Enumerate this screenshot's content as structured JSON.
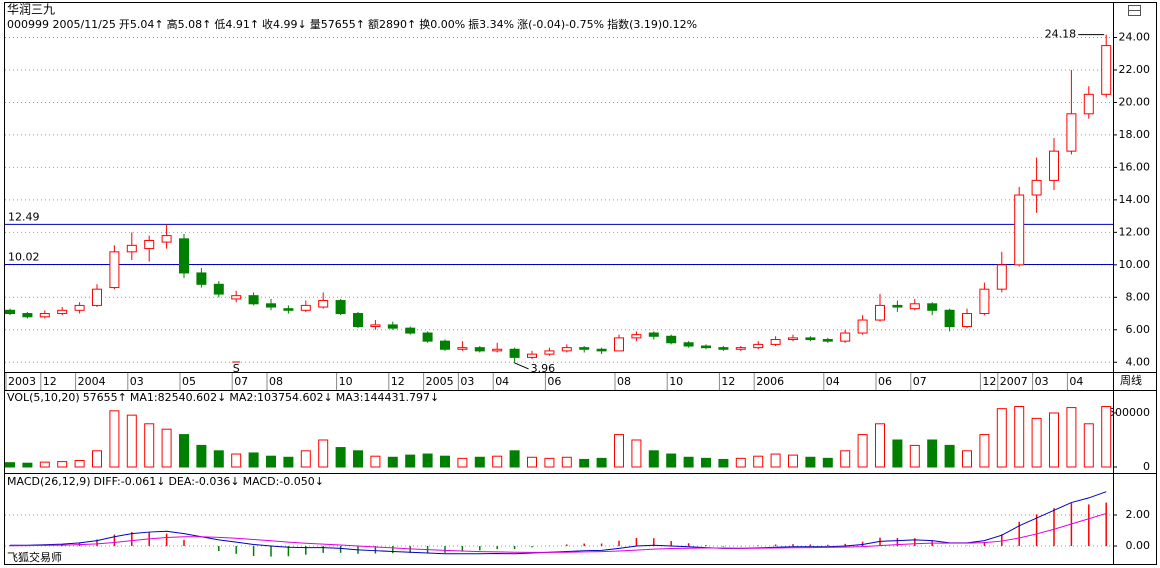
{
  "header": {
    "title": "华润三九",
    "items": [
      {
        "text": "000999 2005/11/25",
        "color": "#000000"
      },
      {
        "text": "开5.04↑",
        "color": "#e00000"
      },
      {
        "text": "高5.08↑",
        "color": "#e00000"
      },
      {
        "text": "低4.91↑",
        "color": "#008000"
      },
      {
        "text": "收4.99↓",
        "color": "#008000"
      },
      {
        "text": "量57655↑",
        "color": "#000000"
      },
      {
        "text": "额2890↑",
        "color": "#000000"
      },
      {
        "text": "换0.00%",
        "color": "#000000"
      },
      {
        "text": "振3.34%",
        "color": "#000000"
      },
      {
        "text": "涨(-0.04)-0.75%",
        "color": "#008000"
      },
      {
        "text": "指数(3.19)0.12%",
        "color": "#e00000"
      }
    ]
  },
  "footer": {
    "brand": "飞狐交易师"
  },
  "chart_data": [
    {
      "type": "candlestick",
      "period_label": "周线",
      "signal": "S",
      "up_color": "#ff0000",
      "down_color": "#008000",
      "categories": [
        "2003",
        null,
        "12",
        null,
        "2004",
        null,
        null,
        "03",
        null,
        null,
        "05",
        null,
        null,
        "07",
        null,
        "08",
        null,
        null,
        null,
        "10",
        null,
        null,
        "12",
        null,
        "2005",
        null,
        "03",
        null,
        "04",
        null,
        null,
        "06",
        null,
        null,
        null,
        "08",
        null,
        null,
        "10",
        null,
        null,
        "12",
        null,
        "2006",
        null,
        null,
        null,
        "04",
        null,
        null,
        "06",
        null,
        "07",
        null,
        null,
        null,
        "12",
        "2007",
        null,
        "03",
        null,
        "04",
        null,
        null
      ],
      "candles": [
        [
          7.2,
          7.3,
          6.9,
          7.0
        ],
        [
          7.0,
          7.1,
          6.7,
          6.8
        ],
        [
          6.8,
          7.2,
          6.7,
          7.0
        ],
        [
          7.0,
          7.4,
          6.9,
          7.2
        ],
        [
          7.2,
          7.7,
          7.0,
          7.5
        ],
        [
          7.5,
          8.8,
          7.4,
          8.5
        ],
        [
          8.6,
          11.2,
          8.5,
          10.8
        ],
        [
          10.8,
          12.0,
          10.3,
          11.2
        ],
        [
          11.0,
          11.8,
          10.2,
          11.5
        ],
        [
          11.4,
          12.49,
          11.0,
          11.8
        ],
        [
          11.6,
          11.9,
          9.2,
          9.5
        ],
        [
          9.5,
          9.8,
          8.6,
          8.8
        ],
        [
          8.8,
          9.0,
          8.0,
          8.2
        ],
        [
          7.9,
          8.4,
          7.7,
          8.1
        ],
        [
          8.1,
          8.3,
          7.5,
          7.6
        ],
        [
          7.6,
          7.9,
          7.2,
          7.4
        ],
        [
          7.3,
          7.5,
          7.0,
          7.2
        ],
        [
          7.2,
          7.8,
          7.1,
          7.5
        ],
        [
          7.4,
          8.3,
          7.3,
          7.8
        ],
        [
          7.8,
          7.9,
          6.9,
          7.0
        ],
        [
          7.0,
          7.1,
          6.1,
          6.2
        ],
        [
          6.2,
          6.6,
          6.0,
          6.3
        ],
        [
          6.3,
          6.5,
          6.0,
          6.1
        ],
        [
          6.1,
          6.2,
          5.7,
          5.8
        ],
        [
          5.8,
          5.9,
          5.2,
          5.3
        ],
        [
          5.3,
          5.4,
          4.7,
          4.8
        ],
        [
          4.8,
          5.3,
          4.7,
          4.9
        ],
        [
          4.9,
          5.0,
          4.6,
          4.7
        ],
        [
          4.7,
          5.2,
          4.6,
          4.8
        ],
        [
          4.8,
          4.9,
          3.96,
          4.3
        ],
        [
          4.3,
          4.7,
          4.2,
          4.5
        ],
        [
          4.5,
          4.9,
          4.4,
          4.7
        ],
        [
          4.7,
          5.1,
          4.6,
          4.9
        ],
        [
          4.9,
          5.0,
          4.6,
          4.8
        ],
        [
          4.8,
          4.9,
          4.5,
          4.7
        ],
        [
          4.7,
          5.7,
          4.7,
          5.5
        ],
        [
          5.5,
          5.9,
          5.3,
          5.7
        ],
        [
          5.8,
          5.9,
          5.4,
          5.6
        ],
        [
          5.6,
          5.7,
          5.1,
          5.2
        ],
        [
          5.2,
          5.3,
          4.9,
          5.0
        ],
        [
          5.0,
          5.1,
          4.8,
          4.9
        ],
        [
          4.9,
          5.0,
          4.7,
          4.8
        ],
        [
          4.8,
          5.0,
          4.7,
          4.9
        ],
        [
          4.9,
          5.3,
          4.8,
          5.1
        ],
        [
          5.1,
          5.6,
          5.0,
          5.4
        ],
        [
          5.4,
          5.7,
          5.3,
          5.5
        ],
        [
          5.5,
          5.6,
          5.3,
          5.4
        ],
        [
          5.4,
          5.5,
          5.2,
          5.3
        ],
        [
          5.3,
          6.0,
          5.2,
          5.8
        ],
        [
          5.8,
          6.9,
          5.7,
          6.6
        ],
        [
          6.6,
          8.2,
          6.5,
          7.5
        ],
        [
          7.5,
          7.8,
          7.1,
          7.4
        ],
        [
          7.3,
          7.9,
          7.2,
          7.6
        ],
        [
          7.6,
          7.7,
          6.9,
          7.2
        ],
        [
          7.2,
          7.3,
          5.9,
          6.2
        ],
        [
          6.2,
          7.3,
          6.1,
          7.0
        ],
        [
          7.0,
          8.9,
          6.9,
          8.5
        ],
        [
          8.5,
          10.8,
          8.3,
          10.0
        ],
        [
          10.0,
          14.8,
          9.9,
          14.3
        ],
        [
          14.3,
          16.6,
          13.2,
          15.2
        ],
        [
          15.2,
          17.8,
          14.6,
          17.0
        ],
        [
          17.0,
          22.0,
          16.8,
          19.3
        ],
        [
          19.3,
          21.0,
          19.0,
          20.5
        ],
        [
          20.5,
          24.18,
          20.3,
          23.5
        ]
      ],
      "ylim": [
        3.4,
        25.2
      ],
      "yticks": [
        {
          "value": 4,
          "label": "4.00"
        },
        {
          "value": 6,
          "label": "6.00"
        },
        {
          "value": 8,
          "label": "8.00"
        },
        {
          "value": 10,
          "label": "10.00"
        },
        {
          "value": 12,
          "label": "12.00"
        },
        {
          "value": 14,
          "label": "14.00"
        },
        {
          "value": 16,
          "label": "16.00"
        },
        {
          "value": 18,
          "label": "18.00"
        },
        {
          "value": 20,
          "label": "20.00"
        },
        {
          "value": 22,
          "label": "22.00"
        },
        {
          "value": 24,
          "label": "24.00"
        }
      ],
      "grid": true,
      "hlines": [
        12.49,
        10.02
      ],
      "hline_color": "#0000c0",
      "high_mark": 24.18,
      "low_mark": 3.96
    },
    {
      "type": "volume",
      "legend": [
        {
          "text": "VOL(5,10,20)",
          "color": "#000000"
        },
        {
          "text": "57655↑",
          "color": "#0000c0"
        },
        {
          "text": "MA1:82540.602↓",
          "color": "#e000e0"
        },
        {
          "text": "MA2:103754.602↓",
          "color": "#808080"
        },
        {
          "text": "MA3:144431.797↓",
          "color": "#800000"
        }
      ],
      "values": [
        40000,
        35000,
        45000,
        50000,
        60000,
        150000,
        520000,
        480000,
        400000,
        350000,
        300000,
        200000,
        150000,
        120000,
        130000,
        100000,
        90000,
        150000,
        250000,
        180000,
        150000,
        100000,
        90000,
        110000,
        120000,
        100000,
        80000,
        90000,
        100000,
        150000,
        90000,
        80000,
        90000,
        70000,
        80000,
        300000,
        250000,
        150000,
        120000,
        90000,
        80000,
        70000,
        80000,
        100000,
        120000,
        110000,
        90000,
        80000,
        150000,
        300000,
        400000,
        250000,
        200000,
        250000,
        200000,
        150000,
        300000,
        540000,
        560000,
        450000,
        500000,
        550000,
        400000,
        560000
      ],
      "ylim": [
        0,
        574000
      ],
      "yticks": [
        0,
        500000
      ]
    },
    {
      "type": "macd",
      "legend": [
        {
          "text": "MACD(26,12,9)",
          "color": "#000000"
        },
        {
          "text": "DIFF:-0.061↓",
          "color": "#0000c0"
        },
        {
          "text": "DEA:-0.036↓",
          "color": "#e000e0"
        },
        {
          "text": "MACD:-0.050↓",
          "color": "#808080"
        }
      ],
      "lines": [
        {
          "color": "#0000c0",
          "values": [
            0.05,
            0.05,
            0.08,
            0.12,
            0.2,
            0.35,
            0.6,
            0.8,
            0.9,
            0.95,
            0.8,
            0.6,
            0.4,
            0.25,
            0.1,
            0.0,
            -0.08,
            -0.1,
            -0.1,
            -0.15,
            -0.25,
            -0.3,
            -0.35,
            -0.4,
            -0.45,
            -0.5,
            -0.5,
            -0.5,
            -0.48,
            -0.5,
            -0.45,
            -0.4,
            -0.35,
            -0.3,
            -0.28,
            -0.15,
            0.0,
            0.05,
            0.0,
            -0.05,
            -0.1,
            -0.15,
            -0.15,
            -0.12,
            -0.08,
            -0.05,
            -0.05,
            -0.05,
            0.0,
            0.1,
            0.3,
            0.35,
            0.4,
            0.35,
            0.2,
            0.2,
            0.35,
            0.7,
            1.3,
            1.8,
            2.3,
            2.8,
            3.1,
            3.5
          ]
        },
        {
          "color": "#e000e0",
          "values": [
            0.02,
            0.03,
            0.04,
            0.06,
            0.09,
            0.14,
            0.23,
            0.35,
            0.46,
            0.55,
            0.6,
            0.6,
            0.56,
            0.5,
            0.42,
            0.34,
            0.25,
            0.18,
            0.12,
            0.07,
            0.0,
            -0.06,
            -0.12,
            -0.18,
            -0.23,
            -0.28,
            -0.32,
            -0.36,
            -0.38,
            -0.4,
            -0.41,
            -0.41,
            -0.4,
            -0.38,
            -0.36,
            -0.32,
            -0.26,
            -0.2,
            -0.16,
            -0.14,
            -0.13,
            -0.13,
            -0.14,
            -0.14,
            -0.13,
            -0.11,
            -0.1,
            -0.09,
            -0.07,
            -0.04,
            0.03,
            0.09,
            0.15,
            0.19,
            0.19,
            0.19,
            0.22,
            0.32,
            0.52,
            0.78,
            1.08,
            1.42,
            1.76,
            2.1
          ]
        }
      ],
      "histogram": [
        0.06,
        0.04,
        0.08,
        0.12,
        0.22,
        0.42,
        0.74,
        0.9,
        0.88,
        0.8,
        0.4,
        0.0,
        -0.32,
        -0.5,
        -0.64,
        -0.68,
        -0.66,
        -0.56,
        -0.44,
        -0.44,
        -0.5,
        -0.48,
        -0.46,
        -0.44,
        -0.44,
        -0.44,
        -0.36,
        -0.28,
        -0.2,
        -0.2,
        -0.08,
        0.02,
        0.1,
        0.16,
        0.16,
        0.34,
        0.52,
        0.5,
        0.32,
        0.18,
        0.06,
        -0.04,
        -0.02,
        0.04,
        0.1,
        0.12,
        0.1,
        0.08,
        0.14,
        0.28,
        0.54,
        0.52,
        0.5,
        0.32,
        0.02,
        0.02,
        0.26,
        0.76,
        1.56,
        2.04,
        2.44,
        2.76,
        2.68,
        2.8
      ],
      "ylim": [
        -0.9,
        3.61
      ],
      "yticks": [
        {
          "value": 0,
          "label": "0.00"
        },
        {
          "value": 2,
          "label": "2.00"
        }
      ]
    }
  ]
}
